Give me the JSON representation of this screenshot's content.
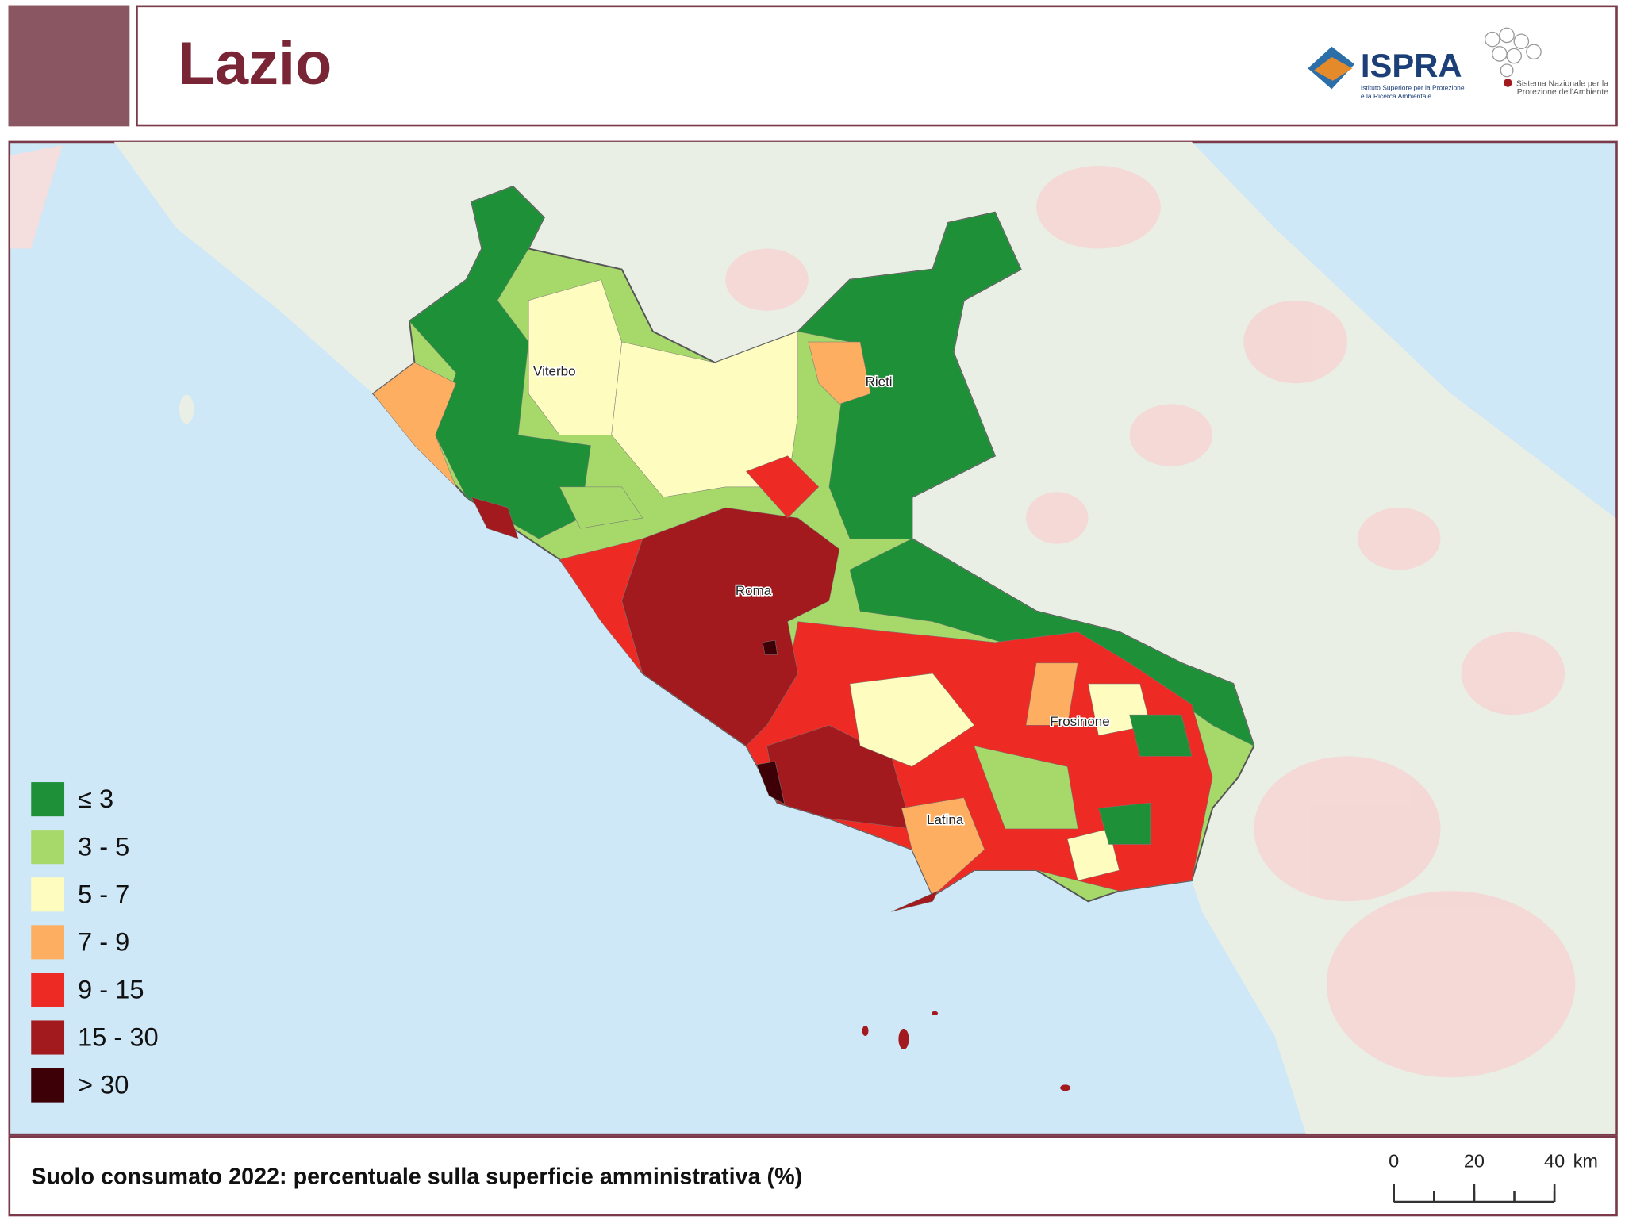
{
  "header": {
    "title": "Lazio",
    "logo": {
      "name": "ISPRA",
      "subtitle": "Istituto Superiore per la Protezione e la Ricerca Ambientale",
      "network": "Sistema Nazionale per la Protezione dell'Ambiente"
    }
  },
  "map": {
    "cities": [
      "Viterbo",
      "Rieti",
      "Roma",
      "Frosinone",
      "Latina"
    ],
    "legend": [
      {
        "label": "≤ 3",
        "color": "#1e9138"
      },
      {
        "label": "3 - 5",
        "color": "#a6d96a"
      },
      {
        "label": "5 - 7",
        "color": "#fffcc0"
      },
      {
        "label": "7 - 9",
        "color": "#fdae61"
      },
      {
        "label": "9 - 15",
        "color": "#ee2a24"
      },
      {
        "label": "15 - 30",
        "color": "#a31a1e"
      },
      {
        "label": "> 30",
        "color": "#3d0006"
      }
    ]
  },
  "caption": "Suolo consumato 2022: percentuale sulla superficie amministrativa (%)",
  "scale_bar": {
    "ticks": [
      0,
      20,
      40
    ],
    "unit": "km"
  }
}
